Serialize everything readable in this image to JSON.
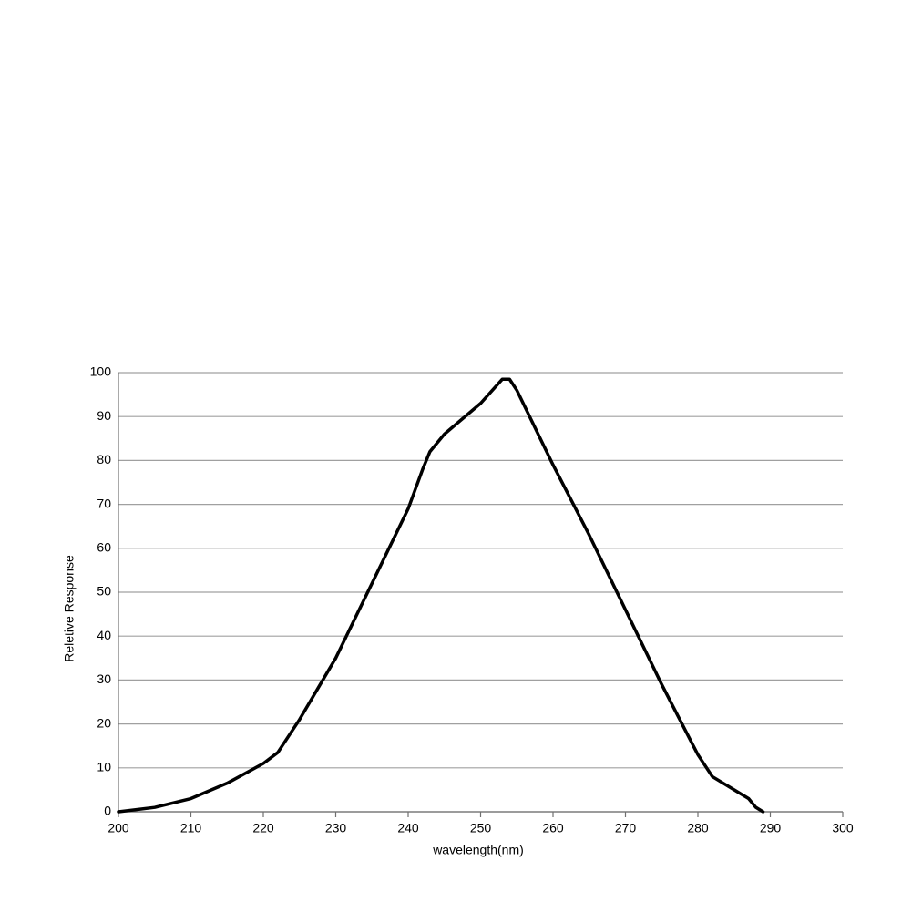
{
  "chart_data": {
    "type": "line",
    "x_label": "wavelength(nm)",
    "y_label": "Reletive Response",
    "x": [
      200,
      205,
      210,
      215,
      220,
      222,
      225,
      230,
      235,
      240,
      242,
      243,
      245,
      250,
      253,
      254,
      255,
      260,
      265,
      270,
      275,
      280,
      282,
      285,
      287,
      288,
      289
    ],
    "series": [
      {
        "color": "#000000",
        "values": [
          0,
          1,
          3,
          6.5,
          11,
          13.5,
          21,
          35,
          52,
          69,
          78,
          82,
          86,
          93,
          98.5,
          98.5,
          96,
          79,
          63,
          46,
          29,
          13,
          8,
          5,
          3,
          1,
          0
        ]
      }
    ],
    "xlim": [
      200,
      300
    ],
    "xticks": [
      200,
      210,
      220,
      230,
      240,
      250,
      260,
      270,
      280,
      290,
      300
    ],
    "ylim": [
      0,
      100
    ],
    "yticks": [
      0,
      10,
      20,
      30,
      40,
      50,
      60,
      70,
      80,
      90,
      100
    ],
    "grid": true
  }
}
